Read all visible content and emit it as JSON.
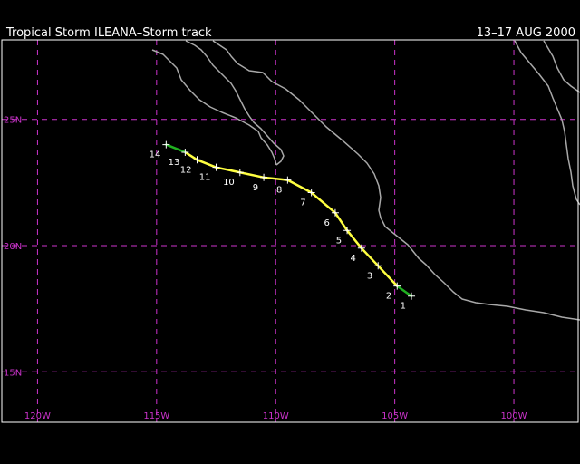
{
  "header": {
    "title": "Tropical Storm ILEANA–Storm track",
    "dates": "13–17 AUG 2000"
  },
  "colors": {
    "background": "#000000",
    "grid": "#cc33cc",
    "coast": "#a8a8a8",
    "storm": "#ffff40",
    "depression": "#20b020",
    "text": "#ffffff"
  },
  "map": {
    "lon_range": [
      -121.5,
      -97.3
    ],
    "lat_range": [
      13.0,
      28.15
    ],
    "lat_lines": [
      {
        "value": 25,
        "label": "25N"
      },
      {
        "value": 20,
        "label": "20N"
      },
      {
        "value": 15,
        "label": "15N"
      }
    ],
    "lon_lines": [
      {
        "value": -120,
        "label": "120W"
      },
      {
        "value": -115,
        "label": "115W"
      },
      {
        "value": -110,
        "label": "110W"
      },
      {
        "value": -105,
        "label": "105W"
      },
      {
        "value": -100,
        "label": "100W"
      }
    ]
  },
  "track": [
    {
      "label": "1",
      "lon": -104.3,
      "lat": 18.0,
      "stage": "depression"
    },
    {
      "label": "2",
      "lon": -104.9,
      "lat": 18.4,
      "stage": "storm"
    },
    {
      "label": "3",
      "lon": -105.7,
      "lat": 19.2,
      "stage": "storm"
    },
    {
      "label": "4",
      "lon": -106.4,
      "lat": 19.9,
      "stage": "storm"
    },
    {
      "label": "5",
      "lon": -107.0,
      "lat": 20.6,
      "stage": "storm"
    },
    {
      "label": "6",
      "lon": -107.5,
      "lat": 21.3,
      "stage": "storm"
    },
    {
      "label": "7",
      "lon": -108.5,
      "lat": 22.1,
      "stage": "storm"
    },
    {
      "label": "8",
      "lon": -109.5,
      "lat": 22.6,
      "stage": "storm"
    },
    {
      "label": "9",
      "lon": -110.5,
      "lat": 22.7,
      "stage": "storm"
    },
    {
      "label": "10",
      "lon": -111.5,
      "lat": 22.9,
      "stage": "storm"
    },
    {
      "label": "11",
      "lon": -112.5,
      "lat": 23.1,
      "stage": "storm"
    },
    {
      "label": "12",
      "lon": -113.3,
      "lat": 23.4,
      "stage": "storm"
    },
    {
      "label": "13",
      "lon": -113.8,
      "lat": 23.7,
      "stage": "storm"
    },
    {
      "label": "14",
      "lon": -114.6,
      "lat": 24.0,
      "stage": "depression"
    }
  ]
}
